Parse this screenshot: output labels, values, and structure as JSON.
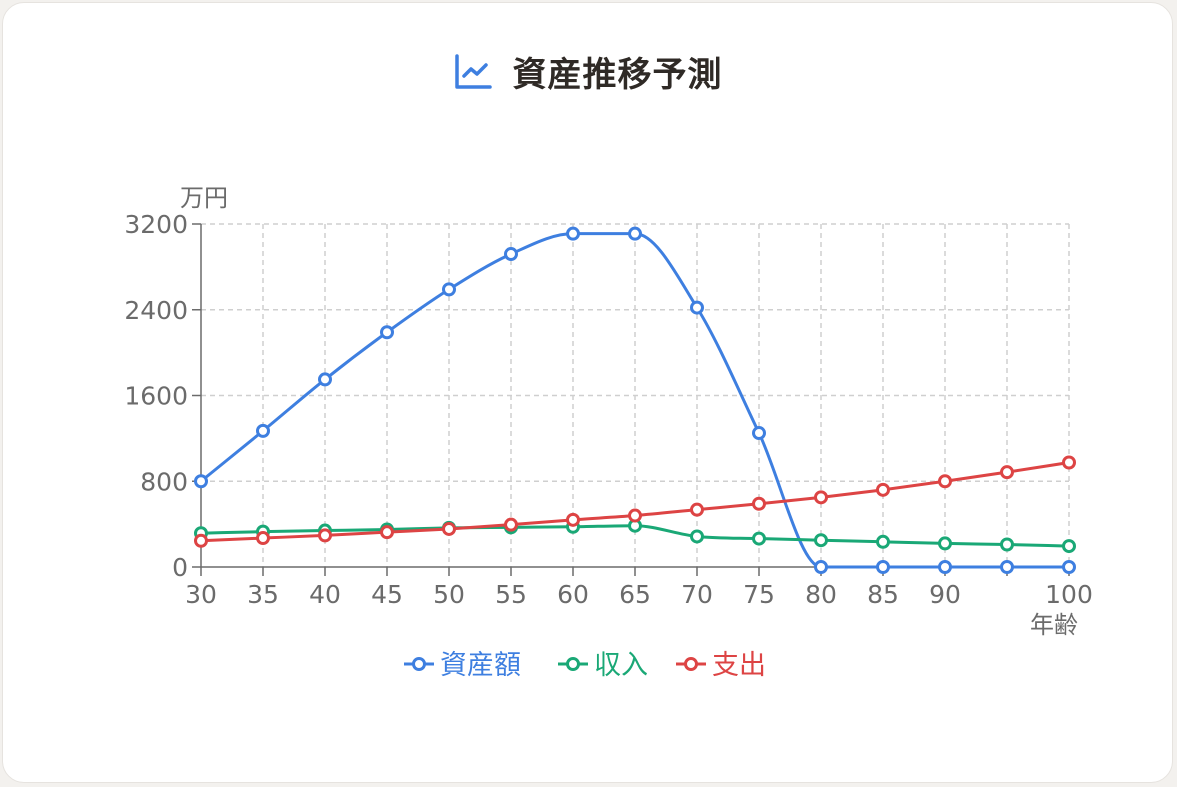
{
  "title": "資産推移予測",
  "icon": "line-chart-icon",
  "colors": {
    "accent": "#3e7fe0",
    "asset": "#3e7fe0",
    "income": "#1aa876",
    "expense": "#dd4444",
    "grid": "#cfcfcf",
    "axis": "#6b6b6b",
    "title": "#2f2a26"
  },
  "chart_data": {
    "type": "line",
    "title": "資産推移予測",
    "xlabel": "年齢",
    "ylabel": "万円",
    "x": [
      30,
      35,
      40,
      45,
      50,
      55,
      60,
      65,
      70,
      75,
      80,
      85,
      90,
      95,
      100
    ],
    "x_tick_labels": [
      "30",
      "35",
      "40",
      "45",
      "50",
      "55",
      "60",
      "65",
      "70",
      "75",
      "80",
      "85",
      "90",
      "",
      "100"
    ],
    "ylim": [
      0,
      3200
    ],
    "y_ticks": [
      0,
      800,
      1600,
      2400,
      3200
    ],
    "grid": true,
    "legend_position": "bottom",
    "series": [
      {
        "name": "資産額",
        "color": "#3e7fe0",
        "values": [
          800,
          1270,
          1750,
          2190,
          2590,
          2920,
          3110,
          3110,
          2420,
          1250,
          0,
          0,
          0,
          0,
          0
        ]
      },
      {
        "name": "収入",
        "color": "#1aa876",
        "values": [
          315,
          330,
          340,
          350,
          365,
          370,
          375,
          385,
          285,
          265,
          250,
          235,
          220,
          210,
          195
        ]
      },
      {
        "name": "支出",
        "color": "#dd4444",
        "values": [
          245,
          270,
          295,
          325,
          355,
          395,
          440,
          480,
          535,
          590,
          650,
          720,
          800,
          885,
          975
        ]
      }
    ]
  }
}
